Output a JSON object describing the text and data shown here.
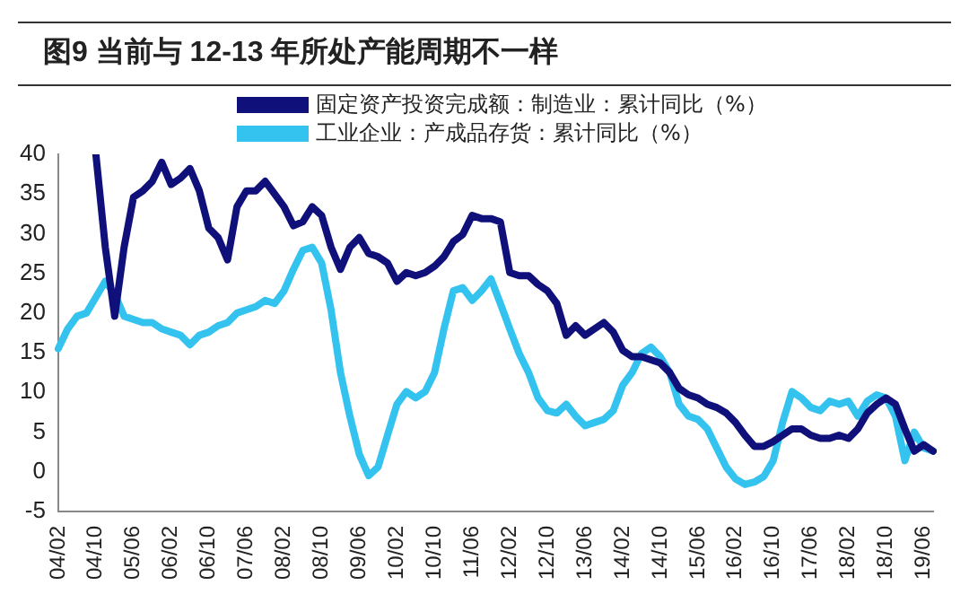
{
  "chart_data": {
    "type": "line",
    "title": "图9  当前与 12-13 年所处产能周期不一样",
    "categories": [
      "04/02",
      null,
      null,
      null,
      "04/10",
      null,
      null,
      null,
      "05/06",
      null,
      null,
      null,
      "06/02",
      null,
      null,
      null,
      "06/10",
      null,
      null,
      null,
      "07/06",
      null,
      null,
      null,
      "08/02",
      null,
      null,
      null,
      "08/10",
      null,
      null,
      null,
      "09/06",
      null,
      null,
      null,
      "10/02",
      null,
      null,
      null,
      "10/10",
      null,
      null,
      null,
      "11/06",
      null,
      null,
      null,
      "12/02",
      null,
      null,
      null,
      "12/10",
      null,
      null,
      null,
      "13/06",
      null,
      null,
      null,
      "14/02",
      null,
      null,
      null,
      "14/10",
      null,
      null,
      null,
      "15/06",
      null,
      null,
      null,
      "16/02",
      null,
      null,
      null,
      "16/10",
      null,
      null,
      null,
      "17/06",
      null,
      null,
      null,
      "18/02",
      null,
      null,
      null,
      "18/10",
      null,
      null,
      null,
      "19/06",
      null
    ],
    "series": [
      {
        "name": "固定资产投资完成额：制造业：累计同比（%）",
        "color": "#10107a",
        "values": [
          null,
          null,
          null,
          null,
          40,
          28.3,
          19.6,
          28.3,
          34.6,
          35.4,
          36.6,
          39,
          36.2,
          37,
          38.2,
          35.4,
          30.7,
          29.5,
          26.7,
          33.4,
          35.4,
          35.4,
          36.6,
          35,
          33.4,
          31,
          31.5,
          33.4,
          32.3,
          28.3,
          25.5,
          28.3,
          29.5,
          27.5,
          27.1,
          26.3,
          24,
          25.1,
          24.7,
          25.1,
          25.9,
          27.1,
          29,
          29.9,
          32.3,
          31.9,
          31.9,
          31.5,
          25.1,
          24.7,
          24.7,
          23.6,
          22.8,
          21.2,
          17.2,
          18.4,
          17.2,
          18,
          18.8,
          17.6,
          15.3,
          14.5,
          14.5,
          14.1,
          13.7,
          12.5,
          10.5,
          9.7,
          9.3,
          8.5,
          8.1,
          7.4,
          6.2,
          4.6,
          3.2,
          3.2,
          3.8,
          4.6,
          5.4,
          5.4,
          4.6,
          4.2,
          4.2,
          4.6,
          4.2,
          5.4,
          7.4,
          8.5,
          9.3,
          8.5,
          5.4,
          2.6,
          3.4,
          2.6
        ]
      },
      {
        "name": "工业企业：产成品存货：累计同比（%）",
        "color": "#33c3ee",
        "values": [
          15.5,
          18,
          19.6,
          20,
          22,
          24,
          22.4,
          19.6,
          19.2,
          18.8,
          18.8,
          18,
          17.6,
          17.2,
          16,
          17.2,
          17.6,
          18.4,
          18.8,
          20,
          20.4,
          20.8,
          21.6,
          21.2,
          22.8,
          25.5,
          27.9,
          28.3,
          26.3,
          20.4,
          12.5,
          7,
          2.2,
          -0.5,
          0.6,
          4.6,
          8.5,
          10.1,
          9.3,
          10.1,
          12.5,
          18,
          22.8,
          23.2,
          21.6,
          22.8,
          24.3,
          21.2,
          18,
          14.9,
          12.5,
          9.3,
          7.7,
          7.4,
          8.5,
          7,
          5.8,
          6.2,
          6.6,
          7.7,
          10.9,
          12.5,
          14.9,
          15.7,
          14.5,
          12.5,
          8.5,
          7,
          6.6,
          5.4,
          3,
          0.6,
          -0.9,
          -1.6,
          -1.3,
          -0.6,
          1.4,
          6.2,
          10.1,
          9.3,
          8.1,
          7.7,
          8.9,
          8.5,
          8.9,
          7,
          8.9,
          9.7,
          9.3,
          7,
          1.4,
          5,
          3,
          2.6
        ]
      }
    ],
    "ylim": [
      -5,
      40
    ],
    "yticks": [
      -5,
      0,
      5,
      10,
      15,
      20,
      25,
      30,
      35,
      40
    ],
    "grid": false,
    "legend": "top",
    "marker": "none",
    "line_style": "solid"
  }
}
